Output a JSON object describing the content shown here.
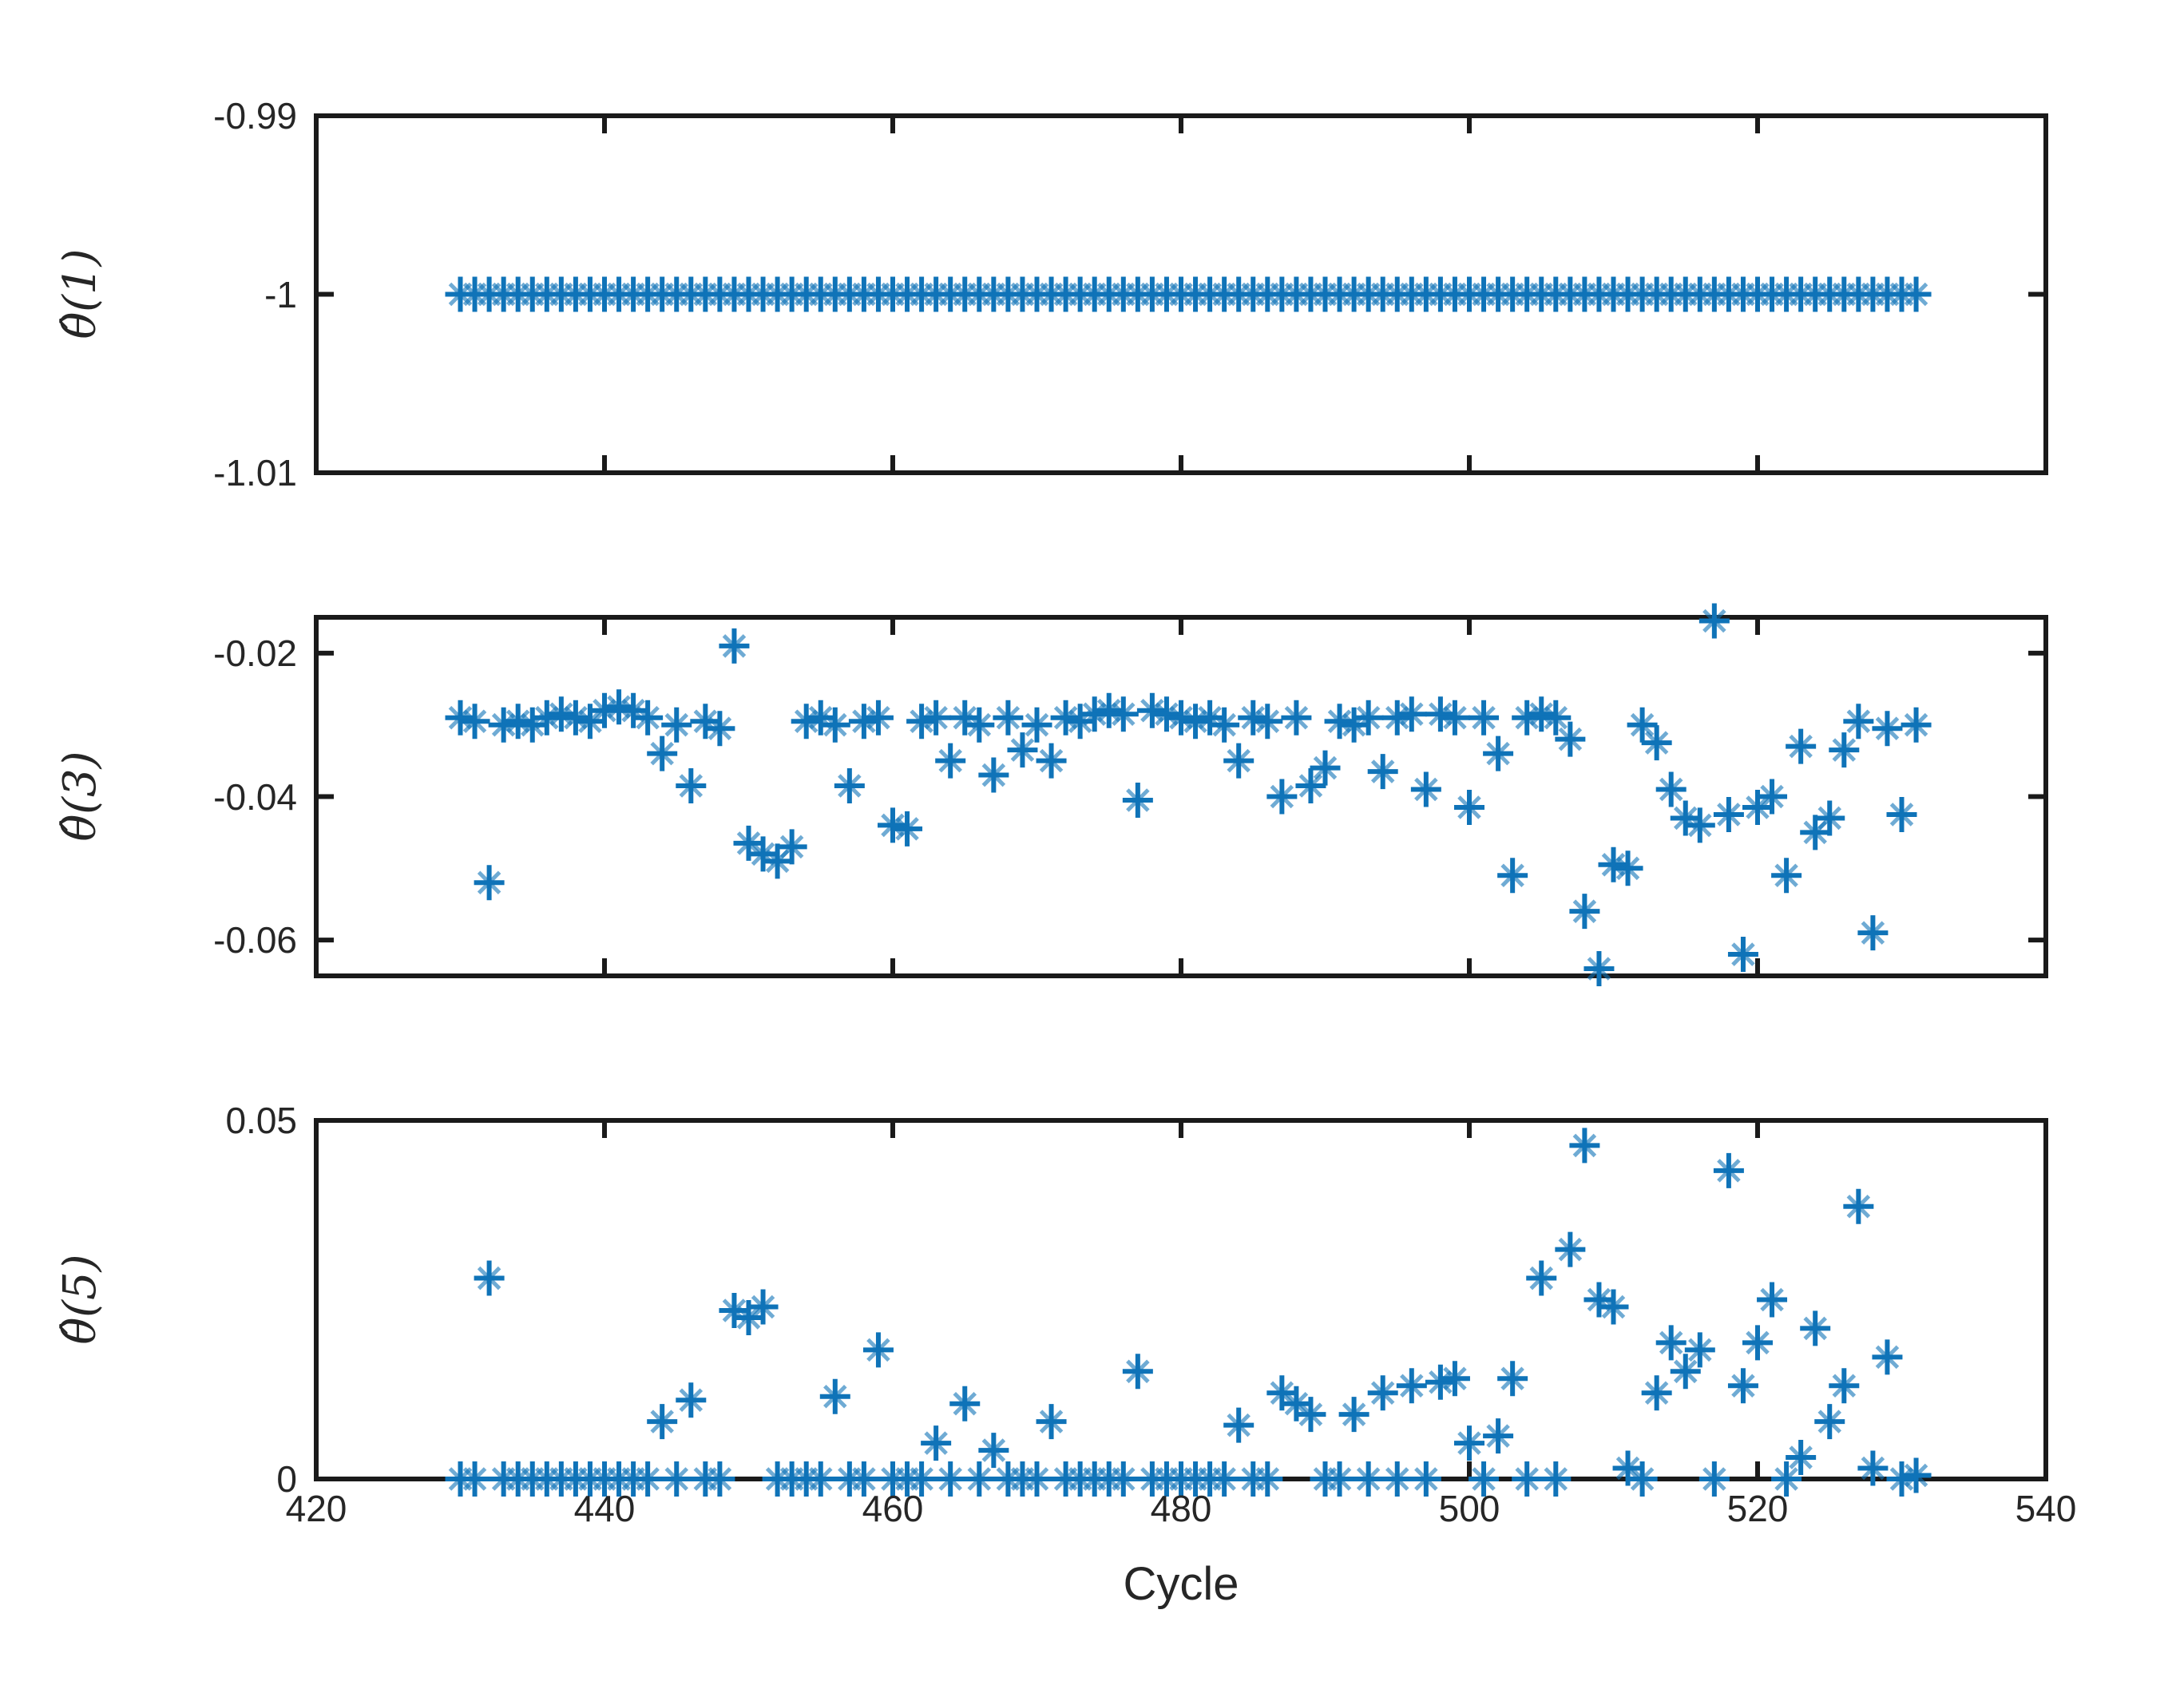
{
  "chart_data": {
    "type": "scatter",
    "marker": "asterisk",
    "marker_color": "#0F73B8",
    "axis_color": "#1a1a1a",
    "text_color": "#262626",
    "xlabel": "Cycle",
    "xlim": [
      420,
      540
    ],
    "x_ticks": [
      420,
      440,
      460,
      480,
      500,
      520,
      540
    ],
    "x_tick_labels": [
      "420",
      "440",
      "460",
      "480",
      "500",
      "520",
      "540"
    ],
    "grid": false,
    "legend": null,
    "cycles": [
      430,
      431,
      432,
      433,
      434,
      435,
      436,
      437,
      438,
      439,
      440,
      441,
      442,
      443,
      444,
      445,
      446,
      447,
      448,
      449,
      450,
      451,
      452,
      453,
      454,
      455,
      456,
      457,
      458,
      459,
      460,
      461,
      462,
      463,
      464,
      465,
      466,
      467,
      468,
      469,
      470,
      471,
      472,
      473,
      474,
      475,
      476,
      477,
      478,
      479,
      480,
      481,
      482,
      483,
      484,
      485,
      486,
      487,
      488,
      489,
      490,
      491,
      492,
      493,
      494,
      495,
      496,
      497,
      498,
      499,
      500,
      501,
      502,
      503,
      504,
      505,
      506,
      507,
      508,
      509,
      510,
      511,
      512,
      513,
      514,
      515,
      516,
      517,
      518,
      519,
      520,
      521,
      522,
      523,
      524,
      525,
      526,
      527,
      528,
      529,
      530,
      531
    ],
    "subplots": [
      {
        "ylabel": "θ̂(1)",
        "ylim": [
          -1.01,
          -0.99
        ],
        "yticks": [
          -0.99,
          -1,
          -1.01
        ],
        "ytick_labels": [
          "-0.99",
          "-1",
          "-1.01"
        ],
        "values": [
          -1,
          -1,
          -1,
          -1,
          -1,
          -1,
          -1,
          -1,
          -1,
          -1,
          -1,
          -1,
          -1,
          -1,
          -1,
          -1,
          -1,
          -1,
          -1,
          -1,
          -1,
          -1,
          -1,
          -1,
          -1,
          -1,
          -1,
          -1,
          -1,
          -1,
          -1,
          -1,
          -1,
          -1,
          -1,
          -1,
          -1,
          -1,
          -1,
          -1,
          -1,
          -1,
          -1,
          -1,
          -1,
          -1,
          -1,
          -1,
          -1,
          -1,
          -1,
          -1,
          -1,
          -1,
          -1,
          -1,
          -1,
          -1,
          -1,
          -1,
          -1,
          -1,
          -1,
          -1,
          -1,
          -1,
          -1,
          -1,
          -1,
          -1,
          -1,
          -1,
          -1,
          -1,
          -1,
          -1,
          -1,
          -1,
          -1,
          -1,
          -1,
          -1,
          -1,
          -1,
          -1,
          -1,
          -1,
          -1,
          -1,
          -1,
          -1,
          -1,
          -1,
          -1,
          -1,
          -1,
          -1,
          -1,
          -1,
          -1,
          -1,
          -1
        ]
      },
      {
        "ylabel": "θ̂(3)",
        "ylim": [
          -0.065,
          -0.015
        ],
        "yticks": [
          -0.02,
          -0.04,
          -0.06
        ],
        "ytick_labels": [
          "-0.02",
          "-0.04",
          "-0.06"
        ],
        "values": [
          -0.029,
          -0.0295,
          -0.052,
          -0.03,
          -0.0295,
          -0.03,
          -0.029,
          -0.0285,
          -0.029,
          -0.0295,
          -0.028,
          -0.0275,
          -0.028,
          -0.029,
          -0.034,
          -0.03,
          -0.0385,
          -0.0295,
          -0.0305,
          -0.019,
          -0.0465,
          -0.048,
          -0.049,
          -0.047,
          -0.0295,
          -0.029,
          -0.03,
          -0.0385,
          -0.0295,
          -0.029,
          -0.044,
          -0.0445,
          -0.0295,
          -0.029,
          -0.035,
          -0.029,
          -0.03,
          -0.037,
          -0.029,
          -0.0335,
          -0.03,
          -0.035,
          -0.029,
          -0.0295,
          -0.0285,
          -0.028,
          -0.0285,
          -0.0405,
          -0.028,
          -0.0285,
          -0.029,
          -0.0295,
          -0.029,
          -0.03,
          -0.035,
          -0.029,
          -0.0295,
          -0.04,
          -0.029,
          -0.0385,
          -0.036,
          -0.0295,
          -0.03,
          -0.029,
          -0.0365,
          -0.029,
          -0.0285,
          -0.039,
          -0.0285,
          -0.029,
          -0.0415,
          -0.029,
          -0.034,
          -0.051,
          -0.029,
          -0.0285,
          -0.029,
          -0.032,
          -0.056,
          -0.064,
          -0.0495,
          -0.05,
          -0.03,
          -0.0325,
          -0.039,
          -0.043,
          -0.044,
          -0.0155,
          -0.0425,
          -0.062,
          -0.0415,
          -0.04,
          -0.051,
          -0.033,
          -0.045,
          -0.043,
          -0.0335,
          -0.0295,
          -0.059,
          -0.0305,
          -0.0425,
          -0.03
        ]
      },
      {
        "ylabel": "θ̂(5)",
        "ylim": [
          0,
          0.05
        ],
        "yticks": [
          0.05,
          0
        ],
        "ytick_labels": [
          "0.05",
          "0"
        ],
        "values": [
          0,
          0,
          0.028,
          0,
          0,
          0,
          0,
          0,
          0,
          0,
          0,
          0,
          0,
          0,
          0.008,
          0,
          0.011,
          0,
          0,
          0.0235,
          0.0225,
          0.024,
          0,
          0,
          0,
          0,
          0.0115,
          0,
          0,
          0.018,
          0,
          0,
          0,
          0.005,
          0,
          0.0105,
          0,
          0.004,
          0,
          0,
          0,
          0.008,
          0,
          0,
          0,
          0,
          0,
          0.015,
          0,
          0,
          0,
          0,
          0,
          0,
          0.0075,
          0,
          0,
          0.012,
          0.0105,
          0.009,
          0,
          0,
          0.009,
          0,
          0.012,
          0,
          0.013,
          0,
          0.0135,
          0.014,
          0.005,
          0,
          0.006,
          0.014,
          0,
          0.028,
          0,
          0.032,
          0.0465,
          0.025,
          0.024,
          0.0015,
          0,
          0.012,
          0.019,
          0.015,
          0.018,
          0,
          0.043,
          0.013,
          0.019,
          0.025,
          0,
          0.003,
          0.021,
          0.008,
          0.013,
          0.038,
          0.0015,
          0.017,
          0,
          0.0005
        ]
      }
    ]
  }
}
